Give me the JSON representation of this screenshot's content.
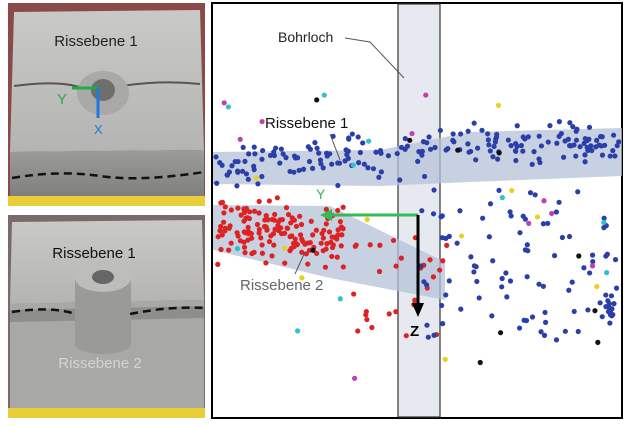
{
  "photos": [
    {
      "label": "Rissebene 1",
      "axis_y": "Y",
      "axis_x": "X"
    },
    {
      "label_top": "Rissebene 1",
      "label_bottom": "Rissebene 2"
    }
  ],
  "diagram": {
    "borehole": "Bohrloch",
    "plane_1": "Rissebene 1",
    "plane_2": "Rissebene 2",
    "axis_y": "Y",
    "axis_z": "Z"
  }
}
